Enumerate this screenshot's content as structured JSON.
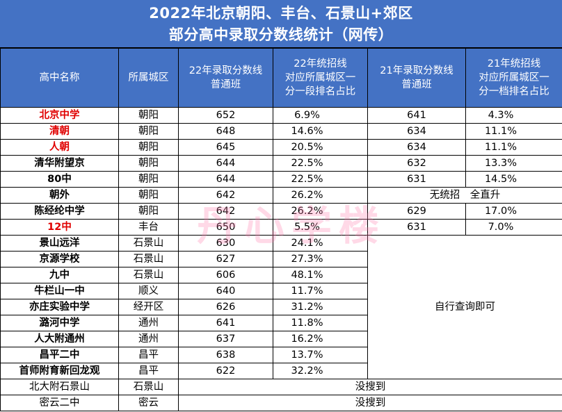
{
  "title": {
    "line1": "2022年北京朝阳、丰台、石景山+郊区",
    "line2": "部分高中录取分数线统计（网传）"
  },
  "headers": {
    "school": "高中名称",
    "district": "所属城区",
    "score22": [
      "22年录取分数线",
      "普通班"
    ],
    "rank22": [
      "22年统招线",
      "对应所属城区一",
      "分一段排名占比"
    ],
    "score21": [
      "21年录取分数线",
      "普通班"
    ],
    "rank21": [
      "21年统招线",
      "对应所属城区一",
      "分一档排名占比"
    ]
  },
  "rows": [
    {
      "school": "北京中学",
      "district": "朝阳",
      "score22": "652",
      "rank22": "6.9%",
      "score21": "641",
      "rank21": "4.3%"
    },
    {
      "school": "清朝",
      "district": "朝阳",
      "score22": "648",
      "rank22": "14.6%",
      "score21": "634",
      "rank21": "11.1%"
    },
    {
      "school": "人朝",
      "district": "朝阳",
      "score22": "645",
      "rank22": "20.5%",
      "score21": "634",
      "rank21": "11.1%"
    },
    {
      "school": "清华附望京",
      "district": "朝阳",
      "score22": "644",
      "rank22": "22.5%",
      "score21": "632",
      "rank21": "13.3%"
    },
    {
      "school": "80中",
      "district": "朝阳",
      "score22": "644",
      "rank22": "22.5%",
      "score21": "631",
      "rank21": "14.5%"
    },
    {
      "school": "朝外",
      "district": "朝阳",
      "score22": "642",
      "rank22": "26.2%",
      "note21": "无统招　全直升"
    },
    {
      "school": "陈经纶中学",
      "district": "朝阳",
      "score22": "642",
      "rank22": "26.2%",
      "score21": "629",
      "rank21": "17.0%"
    },
    {
      "school": "12中",
      "district": "丰台",
      "score22": "650",
      "rank22": "5.5%",
      "score21": "631",
      "rank21": "7.0%"
    },
    {
      "school": "景山远洋",
      "district": "石景山",
      "score22": "630",
      "rank22": "24.1%"
    },
    {
      "school": "京源学校",
      "district": "石景山",
      "score22": "627",
      "rank22": "27.3%"
    },
    {
      "school": "九中",
      "district": "石景山",
      "score22": "606",
      "rank22": "48.1%"
    },
    {
      "school": "牛栏山一中",
      "district": "顺义",
      "score22": "640",
      "rank22": "11.7%"
    },
    {
      "school": "亦庄实验中学",
      "district": "经开区",
      "score22": "626",
      "rank22": "31.2%"
    },
    {
      "school": "潞河中学",
      "district": "通州",
      "score22": "641",
      "rank22": "11.8%"
    },
    {
      "school": "人大附通州",
      "district": "通州",
      "score22": "637",
      "rank22": "16.2%"
    },
    {
      "school": "昌平二中",
      "district": "昌平",
      "score22": "638",
      "rank22": "13.7%"
    },
    {
      "school": "首师附育新回龙观",
      "district": "昌平",
      "score22": "622",
      "rank22": "32.2%"
    },
    {
      "school": "北大附石景山",
      "district": "石景山",
      "note22": "没搜到"
    },
    {
      "school": "密云二中",
      "district": "密云",
      "note22": "没搜到"
    }
  ],
  "self_query_note": "自行查询即可",
  "watermark": "丹心学楼",
  "colors": {
    "header_bg": "#4472c4",
    "header_text": "#ffffff",
    "highlight_red": "#e00000",
    "watermark": "#ff78aa"
  }
}
